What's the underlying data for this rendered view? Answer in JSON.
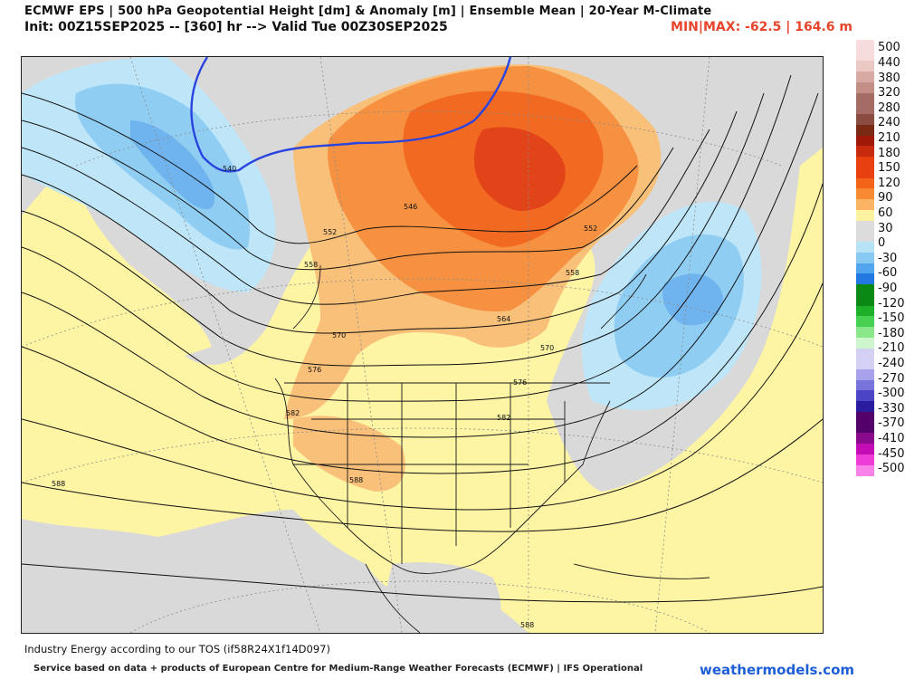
{
  "header": {
    "line1": "ECMWF EPS | 500 hPa Geopotential Height [dm] & Anomaly [m] | Ensemble Mean | 20-Year M-Climate",
    "line2": "Init: 00Z15SEP2025 -- [360] hr --> Valid Tue 00Z30SEP2025",
    "minmax": "MIN|MAX: -62.5 | 164.6 m"
  },
  "legend": {
    "labels": [
      "500",
      "440",
      "380",
      "320",
      "280",
      "240",
      "210",
      "180",
      "150",
      "120",
      "90",
      "60",
      "30",
      "0",
      "-30",
      "-60",
      "-90",
      "-120",
      "-150",
      "-180",
      "-210",
      "-240",
      "-270",
      "-300",
      "-330",
      "-370",
      "-410",
      "-450",
      "-500"
    ],
    "colors": [
      "#f6dcdc",
      "#ecc8c4",
      "#d8aaa4",
      "#c28e86",
      "#a46c64",
      "#8a4c40",
      "#7a2a14",
      "#a01808",
      "#c82a0c",
      "#e8400e",
      "#f46418",
      "#f88a34",
      "#fbb464",
      "#fdf2a0",
      "#dcdcdc",
      "#b8e2f6",
      "#86caf4",
      "#52a6f0",
      "#2478e2",
      "#0a8a14",
      "#1eb028",
      "#48d052",
      "#8ae88a",
      "#cef6cc",
      "#d4d0f4",
      "#a8a2ec",
      "#7874dc",
      "#4c44c6",
      "#2a1c9e"
    ],
    "extra_colors": [
      "#54006a",
      "#8a0a8e",
      "#c40cb6",
      "#ee3cd6",
      "#f882ea"
    ]
  },
  "map": {
    "contour_labels": [
      "540",
      "546",
      "552",
      "552",
      "558",
      "558",
      "564",
      "570",
      "570",
      "576",
      "576",
      "582",
      "582",
      "588",
      "588",
      "588"
    ]
  },
  "note": "Industry Energy according to our TOS (if58R24X1f14D097)",
  "footer": "Service based on data + products of European Centre for Medium-Range Weather Forecasts (ECMWF) | IFS Operational",
  "brand": "weathermodels.com"
}
